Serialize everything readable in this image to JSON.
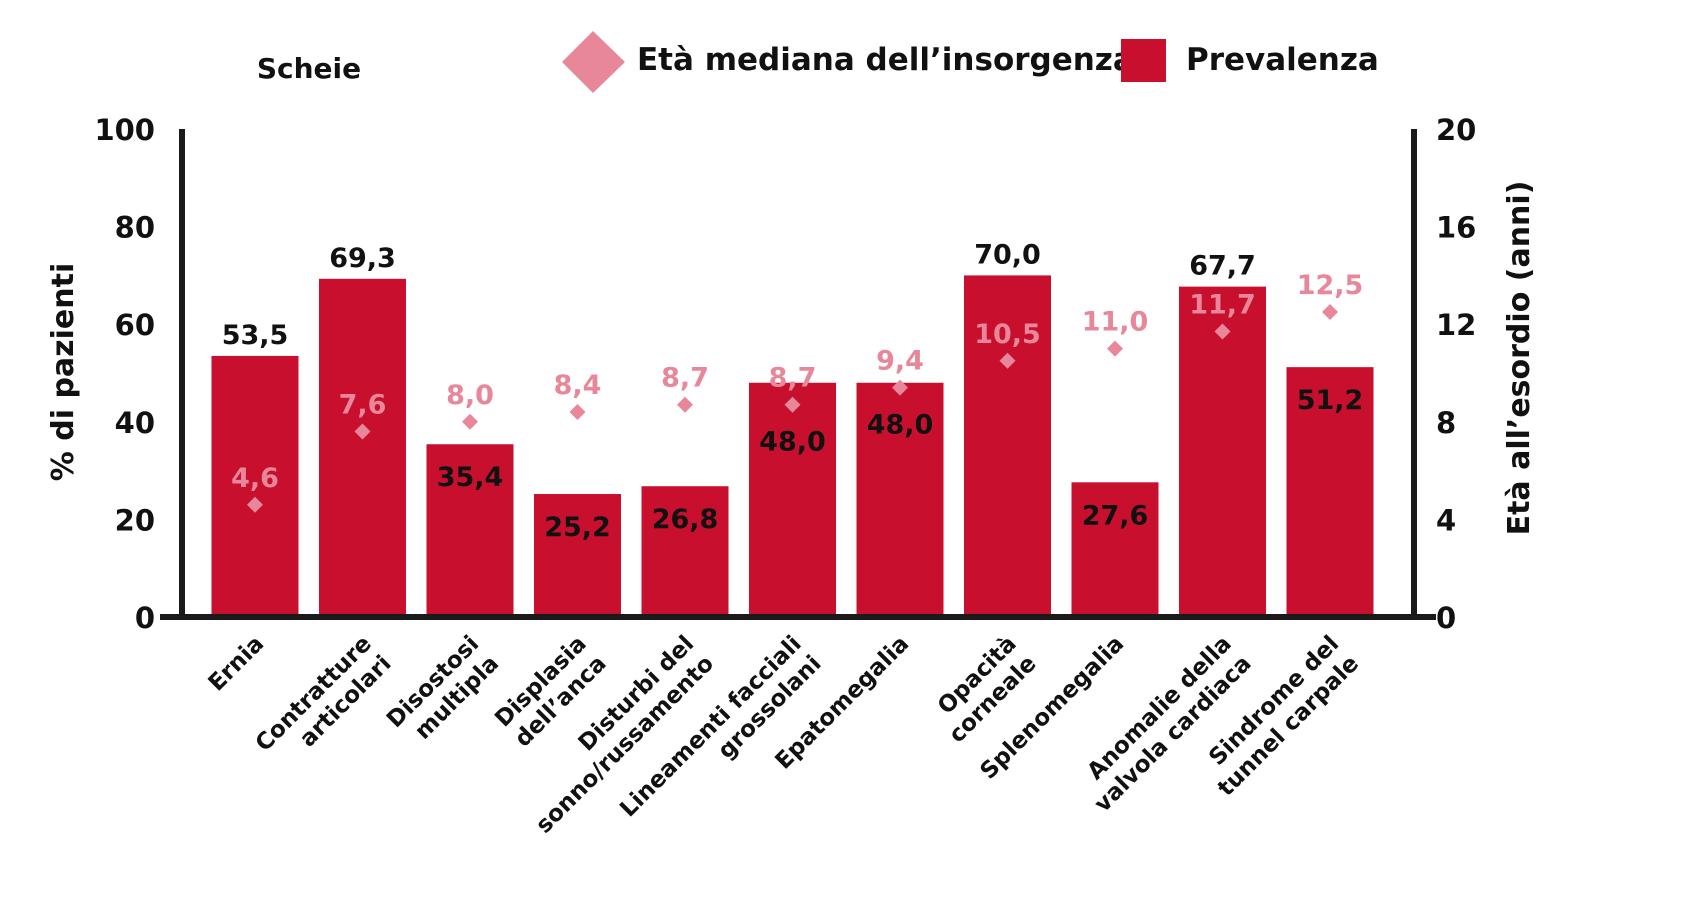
{
  "chart_data": {
    "type": "bar",
    "title": "Scheie",
    "legend": {
      "position": "top",
      "items": [
        {
          "name": "Età mediana dell’insorgenza",
          "marker": "diamond-icon"
        },
        {
          "name": "Prevalenza",
          "marker": "square-icon"
        }
      ]
    },
    "categories": [
      [
        "Ernia"
      ],
      [
        "Contratture",
        "articolari"
      ],
      [
        "Disostosi",
        "multipla"
      ],
      [
        "Displasia",
        "dell’anca"
      ],
      [
        "Disturbi del",
        "sonno/russamento"
      ],
      [
        "Lineamenti facciali",
        "grossolani"
      ],
      [
        "Epatomegalia"
      ],
      [
        "Opacità",
        "corneale"
      ],
      [
        "Splenomegalia"
      ],
      [
        "Anomalie della",
        "valvola cardiaca"
      ],
      [
        "Sindrome del",
        "tunnel carpale"
      ]
    ],
    "series": [
      {
        "name": "Prevalenza",
        "axis": "left",
        "values": [
          53.5,
          69.3,
          35.4,
          25.2,
          26.8,
          48.0,
          48.0,
          70.0,
          27.6,
          67.7,
          51.2
        ],
        "labels": [
          "53,5",
          "69,3",
          "35,4",
          "25,2",
          "26,8",
          "48,0",
          "48,0",
          "70,0",
          "27,6",
          "67,7",
          "51,2"
        ],
        "label_inside": [
          false,
          false,
          true,
          true,
          true,
          true,
          true,
          false,
          true,
          false,
          true
        ]
      },
      {
        "name": "Età mediana dell’insorgenza",
        "axis": "right",
        "values": [
          4.6,
          7.6,
          8.0,
          8.4,
          8.7,
          8.7,
          9.4,
          10.5,
          11.0,
          11.7,
          12.5
        ],
        "labels": [
          "4,6",
          "7,6",
          "8,0",
          "8,4",
          "8,7",
          "8,7",
          "9,4",
          "10,5",
          "11,0",
          "11,7",
          "12,5"
        ]
      }
    ],
    "y_left": {
      "label": "% di pazienti",
      "ylim": [
        0,
        100
      ],
      "ticks": [
        "0",
        "20",
        "40",
        "60",
        "80",
        "100"
      ]
    },
    "y_right": {
      "label": "Età all’esordio (anni)",
      "ylim": [
        0,
        20
      ],
      "ticks": [
        "0",
        "4",
        "8",
        "12",
        "16",
        "20"
      ]
    },
    "grid": false,
    "colors": {
      "bar": "#c8102e",
      "diamond": "#e8879a",
      "text": "#111111",
      "axis": "#1a1a1a"
    }
  }
}
